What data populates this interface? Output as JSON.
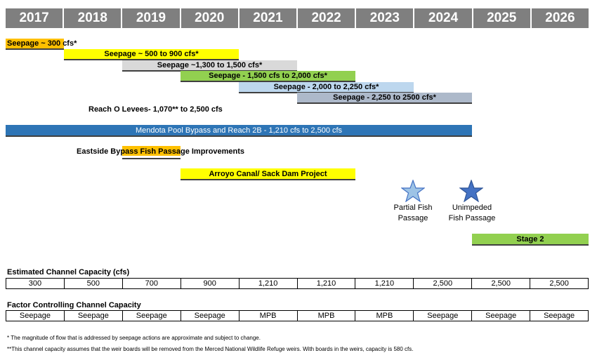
{
  "years": [
    "2017",
    "2018",
    "2019",
    "2020",
    "2021",
    "2022",
    "2023",
    "2024",
    "2025",
    "2026"
  ],
  "bars": {
    "seepage1": "Seepage  ~ 300 cfs*",
    "seepage2": "Seepage ~ 500 to 900 cfs*",
    "seepage3": "Seepage ~1,300 to 1,500 cfs*",
    "seepage4": "Seepage - 1,500 cfs to 2,000 cfs*",
    "seepage5": "Seepage - 2,000 to 2,250 cfs*",
    "seepage6": "Seepage - 2,250 to 2500 cfs*",
    "mendota": "Mendota Pool Bypass and Reach 2B - 1,210 cfs to 2,500 cfs",
    "arroyo": "Arroyo Canal/ Sack Dam Project",
    "stage2": "Stage 2"
  },
  "labels": {
    "reach_o": "Reach O Levees- 1,070** to 2,500 cfs",
    "eastside": "Eastside Bypass Fish Passage Improvements"
  },
  "milestones": {
    "partial": [
      "Partial Fish",
      "Passage"
    ],
    "unimpeded": [
      "Unimpeded",
      "Fish Passage"
    ]
  },
  "capacity": {
    "title": "Estimated Channel Capacity (cfs)",
    "values": [
      "300",
      "500",
      "700",
      "900",
      "1,210",
      "1,210",
      "1,210",
      "2,500",
      "2,500",
      "2,500"
    ]
  },
  "factor": {
    "title": "Factor Controlling Channel Capacity",
    "values": [
      "Seepage",
      "Seepage",
      "Seepage",
      "Seepage",
      "MPB",
      "MPB",
      "MPB",
      "Seepage",
      "Seepage",
      "Seepage"
    ]
  },
  "notes": [
    "* The magnitude of flow that is addressed by seepage actions are approximate and subject to change.",
    "**This channel capacity assumes that the weir boards will be removed from the Merced National Wildlife Refuge weirs.  With boards in the weirs, capacity is 580 cfs."
  ],
  "colors": {
    "orange": "#ffc000",
    "yellow": "#ffff00",
    "gray": "#d9d9d9",
    "green": "#92d050",
    "lightblue": "#bdd7ee",
    "slate": "#adb9ca",
    "blue": "#2e75b6",
    "star": "#9dc3e6",
    "star_dark": "#4472c4"
  }
}
